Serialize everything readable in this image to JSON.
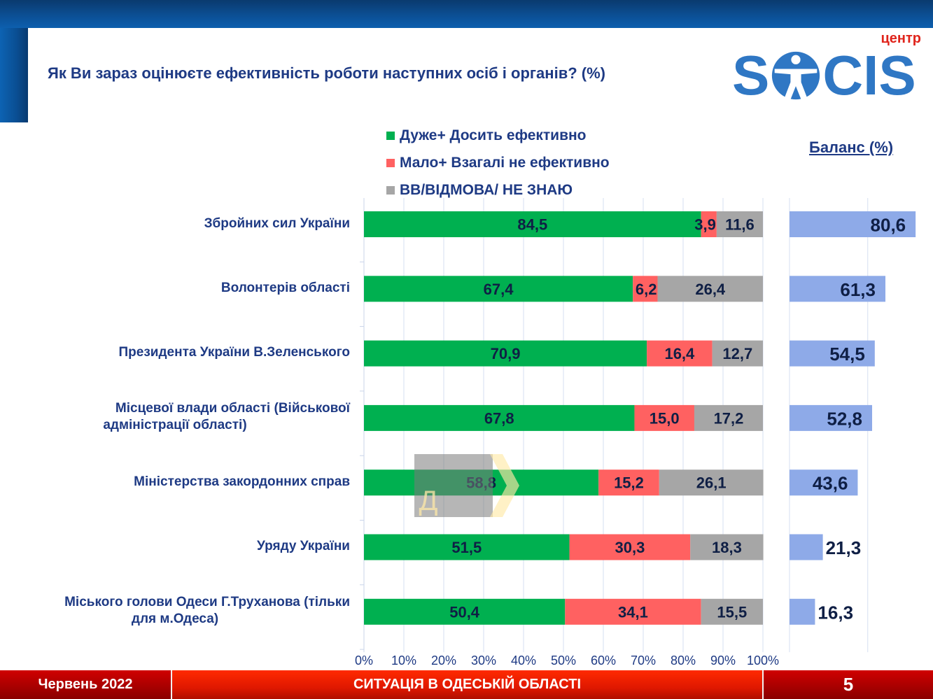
{
  "header": {
    "title": "Як Ви зараз оцінюєте ефективність роботи наступних осіб і органів? (%)",
    "logo": {
      "prefix": "центр",
      "word": "SOCIS",
      "icon": "vitruvian-figure-icon"
    }
  },
  "colors": {
    "effective": "#00b050",
    "not_effective": "#ff6161",
    "dont_know": "#a6a6a6",
    "balance": "#8eaae8",
    "text_dark": "#0f1f45",
    "title_blue": "#1e3a84"
  },
  "chart_data": [
    {
      "type": "bar",
      "orientation": "horizontal",
      "stacked": true,
      "title": "Як Ви зараз оцінюєте ефективність роботи наступних осіб і органів? (%)",
      "categories": [
        "Збройних сил України",
        "Волонтерів області",
        "Президента України В.Зеленського",
        "Місцевої влади області (Військової адміністрації області)",
        "Міністерства закордонних справ",
        "Уряду України",
        "Міського голови Одеси Г.Труханова (тільки для м.Одеса)"
      ],
      "series": [
        {
          "name": "Дуже+ Досить ефективно",
          "values": [
            84.5,
            67.4,
            70.9,
            67.8,
            58.8,
            51.5,
            50.4
          ]
        },
        {
          "name": "Мало+ Взагалі не ефективно",
          "values": [
            3.9,
            6.2,
            16.4,
            15.0,
            15.2,
            30.3,
            34.1
          ]
        },
        {
          "name": "ВВ/ВІДМОВА/ НЕ ЗНАЮ",
          "values": [
            11.6,
            26.4,
            12.7,
            17.2,
            26.1,
            18.3,
            15.5
          ]
        }
      ],
      "value_labels": [
        [
          "84,5",
          "3,9",
          "11,6"
        ],
        [
          "67,4",
          "6,2",
          "26,4"
        ],
        [
          "70,9",
          "16,4",
          "12,7"
        ],
        [
          "67,8",
          "15,0",
          "17,2"
        ],
        [
          "58,8",
          "15,2",
          "26,1"
        ],
        [
          "51,5",
          "30,3",
          "18,3"
        ],
        [
          "50,4",
          "34,1",
          "15,5"
        ]
      ],
      "xlim": [
        0,
        100
      ],
      "xticks": [
        "0%",
        "10%",
        "20%",
        "30%",
        "40%",
        "50%",
        "60%",
        "70%",
        "80%",
        "90%",
        "100%"
      ],
      "grid": true,
      "legend_position": "top"
    },
    {
      "type": "bar",
      "orientation": "horizontal",
      "title": "Баланс (%)",
      "categories": [
        "Збройних сил України",
        "Волонтерів області",
        "Президента України В.Зеленського",
        "Місцевої влади області (Військової адміністрації області)",
        "Міністерства закордонних справ",
        "Уряду України",
        "Міського голови Одеси Г.Труханова (тільки для м.Одеса)"
      ],
      "values": [
        80.6,
        61.3,
        54.5,
        52.8,
        43.6,
        21.3,
        16.3
      ],
      "value_labels": [
        "80,6",
        "61,3",
        "54,5",
        "52,8",
        "43,6",
        "21,3",
        "16,3"
      ],
      "xlim": [
        0,
        100
      ],
      "grid": true
    }
  ],
  "legend": [
    {
      "label": "Дуже+ Досить ефективно",
      "color": "#00b050"
    },
    {
      "label": "Мало+ Взагалі не ефективно",
      "color": "#ff6161"
    },
    {
      "label": "ВВ/ВІДМОВА/ НЕ ЗНАЮ",
      "color": "#a6a6a6"
    }
  ],
  "categories_display": [
    [
      "Збройних сил України"
    ],
    [
      "Волонтерів області"
    ],
    [
      "Президента України В.Зеленського"
    ],
    [
      "Місцевої влади області (Військової",
      "адміністрації області)"
    ],
    [
      "Міністерства закордонних справ"
    ],
    [
      "Уряду України"
    ],
    [
      "Міського голови Одеси Г.Труханова (тільки",
      "для м.Одеса)"
    ]
  ],
  "balance_title": "Баланс (%)",
  "watermark": {
    "glyph": "Д",
    "icon": "chevron-right-icon"
  },
  "footer": {
    "date": "Червень 2022",
    "section": "СИТУАЦІЯ В ОДЕСЬКІЙ ОБЛАСТІ",
    "page": "5"
  }
}
